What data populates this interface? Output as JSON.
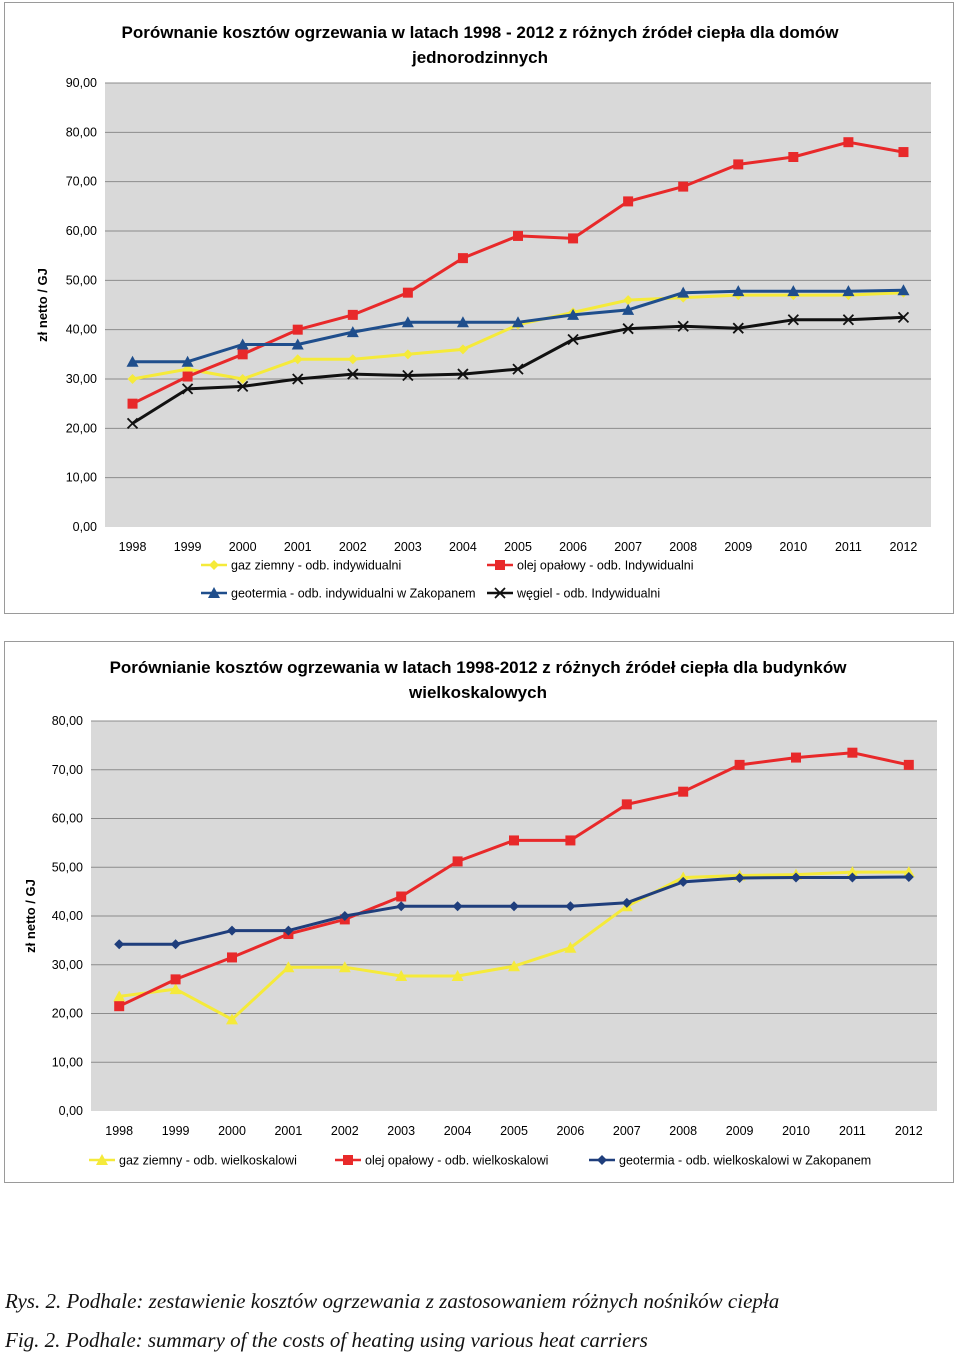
{
  "chart_data": [
    {
      "type": "line",
      "title_lines": [
        "Porównanie kosztów ogrzewania w latach 1998 - 2012 z różnych źródeł ciepła dla domów",
        "jednorodzinnych"
      ],
      "ylabel": "zł netto / GJ",
      "ylim": [
        0,
        90
      ],
      "yticks": [
        "0,00",
        "10,00",
        "20,00",
        "30,00",
        "40,00",
        "50,00",
        "60,00",
        "70,00",
        "80,00",
        "90,00"
      ],
      "categories": [
        "1998",
        "1999",
        "2000",
        "2001",
        "2002",
        "2003",
        "2004",
        "2005",
        "2006",
        "2007",
        "2008",
        "2009",
        "2010",
        "2011",
        "2012"
      ],
      "grid": true,
      "legend_position": "bottom",
      "series": [
        {
          "name": "gaz ziemny - odb. indywidualni",
          "color": "#f5ea3a",
          "marker": "diamond",
          "values": [
            30,
            32,
            30,
            34,
            34,
            35,
            36,
            41,
            43.5,
            46,
            46.5,
            47,
            47,
            47,
            47.5
          ]
        },
        {
          "name": "olej opałowy - odb. Indywidualni",
          "color": "#e8292a",
          "marker": "square",
          "values": [
            25,
            30.5,
            35,
            40,
            43,
            47.5,
            54.5,
            59,
            58.5,
            66,
            69,
            73.5,
            75,
            78,
            76
          ]
        },
        {
          "name": "geotermia - odb. indywidualni w Zakopanem",
          "color": "#1f4e8c",
          "marker": "triangle",
          "values": [
            33.5,
            33.5,
            37,
            37,
            39.5,
            41.5,
            41.5,
            41.5,
            43,
            44,
            47.5,
            47.8,
            47.8,
            47.8,
            48
          ]
        },
        {
          "name": "węgiel - odb. Indywidualni",
          "color": "#111111",
          "marker": "x",
          "values": [
            21,
            28,
            28.5,
            30,
            31,
            30.7,
            31,
            32,
            38,
            40.2,
            40.7,
            40.3,
            42,
            42,
            42.5
          ]
        }
      ]
    },
    {
      "type": "line",
      "title_lines": [
        "Porównianie kosztów ogrzewania w latach 1998-2012 z różnych źródeł ciepła dla budynków",
        "wielkoskalowych"
      ],
      "ylabel": "zł netto / GJ",
      "ylim": [
        0,
        80
      ],
      "yticks": [
        "0,00",
        "10,00",
        "20,00",
        "30,00",
        "40,00",
        "50,00",
        "60,00",
        "70,00",
        "80,00"
      ],
      "categories": [
        "1998",
        "1999",
        "2000",
        "2001",
        "2002",
        "2003",
        "2004",
        "2005",
        "2006",
        "2007",
        "2008",
        "2009",
        "2010",
        "2011",
        "2012"
      ],
      "grid": true,
      "legend_position": "bottom",
      "series": [
        {
          "name": "gaz ziemny - odb. wielkoskalowi",
          "color": "#f5ea3a",
          "marker": "triangle",
          "values": [
            23.5,
            25,
            18.8,
            29.5,
            29.5,
            27.7,
            27.7,
            29.7,
            33.5,
            42,
            47.9,
            48.3,
            48.5,
            49,
            49
          ]
        },
        {
          "name": "olej opałowy - odb. wielkoskalowi",
          "color": "#e8292a",
          "marker": "square",
          "values": [
            21.5,
            27,
            31.5,
            36.3,
            39.3,
            44,
            51.2,
            55.5,
            55.5,
            62.9,
            65.5,
            71,
            72.5,
            73.5,
            71
          ]
        },
        {
          "name": "geotermia - odb. wielkoskalowi w Zakopanem",
          "color": "#1f3e7c",
          "marker": "diamond",
          "values": [
            34.2,
            34.2,
            37,
            37,
            40,
            42,
            42,
            42,
            42,
            42.7,
            47,
            47.8,
            47.9,
            47.9,
            48
          ]
        }
      ]
    }
  ],
  "captions": {
    "pl": "Rys. 2. Podhale: zestawienie kosztów ogrzewania z zastosowaniem różnych nośników ciepła",
    "en": "Fig. 2. Podhale: summary of the costs of heating using various heat carriers"
  }
}
